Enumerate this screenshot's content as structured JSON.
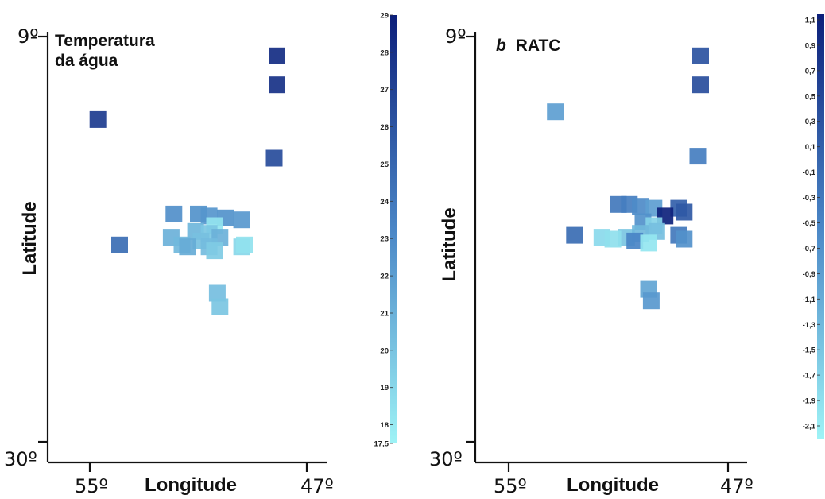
{
  "chart_data": [
    {
      "type": "scatter",
      "title_line1": "Temperatura",
      "title_line2": "da água",
      "title_prefix": "",
      "xlabel": "Longitude",
      "ylabel": "Latitude",
      "x_tick_labels": [
        "55º",
        "47º"
      ],
      "y_tick_labels": [
        "9º",
        "30º"
      ],
      "colorbar": {
        "min": 17.5,
        "max": 29,
        "ticks": [
          29,
          28,
          27,
          26,
          25,
          24,
          23,
          22,
          21,
          20,
          19,
          18,
          17.5
        ],
        "tick_labels": [
          "29",
          "28",
          "27",
          "26",
          "25",
          "24",
          "23",
          "22",
          "21",
          "20",
          "19",
          "18",
          "17,5"
        ]
      },
      "colors": {
        "low": "#9ef3f6",
        "mid": "#4a86c6",
        "high": "#0c1f7a"
      },
      "points": [
        {
          "lon": 48.1,
          "lat": 10.0,
          "v": 28.3
        },
        {
          "lon": 48.1,
          "lat": 11.5,
          "v": 28.0
        },
        {
          "lon": 54.7,
          "lat": 13.3,
          "v": 27.4
        },
        {
          "lon": 48.2,
          "lat": 15.3,
          "v": 26.5
        },
        {
          "lon": 51.9,
          "lat": 18.2,
          "v": 22.8
        },
        {
          "lon": 51.0,
          "lat": 18.2,
          "v": 22.6
        },
        {
          "lon": 50.6,
          "lat": 18.3,
          "v": 22.4
        },
        {
          "lon": 50.0,
          "lat": 18.4,
          "v": 22.6
        },
        {
          "lon": 49.4,
          "lat": 18.5,
          "v": 22.3
        },
        {
          "lon": 50.4,
          "lat": 18.8,
          "v": 18.3
        },
        {
          "lon": 51.1,
          "lat": 19.1,
          "v": 20.7
        },
        {
          "lon": 50.6,
          "lat": 19.2,
          "v": 19.8
        },
        {
          "lon": 52.0,
          "lat": 19.4,
          "v": 21.0
        },
        {
          "lon": 51.6,
          "lat": 19.8,
          "v": 20.6
        },
        {
          "lon": 53.9,
          "lat": 19.8,
          "v": 24.6
        },
        {
          "lon": 50.9,
          "lat": 19.6,
          "v": 20.2
        },
        {
          "lon": 50.2,
          "lat": 19.4,
          "v": 21.0
        },
        {
          "lon": 50.6,
          "lat": 19.9,
          "v": 20.4
        },
        {
          "lon": 51.4,
          "lat": 19.9,
          "v": 21.3
        },
        {
          "lon": 50.4,
          "lat": 20.1,
          "v": 19.6
        },
        {
          "lon": 49.4,
          "lat": 19.9,
          "v": 19.0
        },
        {
          "lon": 49.3,
          "lat": 19.8,
          "v": 18.4
        },
        {
          "lon": 50.3,
          "lat": 22.3,
          "v": 20.3
        },
        {
          "lon": 50.2,
          "lat": 23.0,
          "v": 19.9
        }
      ]
    },
    {
      "type": "scatter",
      "title_prefix": "b",
      "title_line1": "RATC",
      "title_line2": "",
      "xlabel": "Longitude",
      "ylabel": "Latitude",
      "x_tick_labels": [
        "55º",
        "47º"
      ],
      "y_tick_labels": [
        "9º",
        "30º"
      ],
      "colorbar": {
        "min": -2.2,
        "max": 1.15,
        "ticks": [
          1.1,
          0.9,
          0.7,
          0.5,
          0.3,
          0.1,
          -0.1,
          -0.3,
          -0.5,
          -0.7,
          -0.9,
          -1.1,
          -1.3,
          -1.5,
          -1.7,
          -1.9,
          -2.1
        ],
        "tick_labels": [
          "1,1",
          "0,9",
          "0,7",
          "0,5",
          "0,3",
          "0,1",
          "-0,1",
          "-0,3",
          "-0,5",
          "-0,7",
          "-0,9",
          "-1,1",
          "-1,3",
          "-1,5",
          "-1,7",
          "-1,9",
          "-2,1"
        ]
      },
      "colors": {
        "low": "#9ef3f6",
        "mid": "#4a86c6",
        "high": "#0c1f7a"
      },
      "points": [
        {
          "lon": 48.0,
          "lat": 10.0,
          "v": 0.3
        },
        {
          "lon": 48.0,
          "lat": 11.5,
          "v": 0.4
        },
        {
          "lon": 53.3,
          "lat": 12.9,
          "v": -0.9
        },
        {
          "lon": 48.1,
          "lat": 15.2,
          "v": -0.4
        },
        {
          "lon": 51.0,
          "lat": 17.7,
          "v": -0.3
        },
        {
          "lon": 50.6,
          "lat": 17.7,
          "v": -0.4
        },
        {
          "lon": 50.2,
          "lat": 17.8,
          "v": -0.6
        },
        {
          "lon": 49.7,
          "lat": 17.9,
          "v": -0.9
        },
        {
          "lon": 48.8,
          "lat": 17.9,
          "v": 0.1
        },
        {
          "lon": 48.6,
          "lat": 18.1,
          "v": 0.2
        },
        {
          "lon": 49.3,
          "lat": 18.3,
          "v": 1.1
        },
        {
          "lon": 50.1,
          "lat": 18.6,
          "v": -0.7
        },
        {
          "lon": 49.7,
          "lat": 18.8,
          "v": -1.7
        },
        {
          "lon": 52.6,
          "lat": 19.3,
          "v": -0.1
        },
        {
          "lon": 51.6,
          "lat": 19.4,
          "v": -1.8
        },
        {
          "lon": 50.7,
          "lat": 19.4,
          "v": -1.5
        },
        {
          "lon": 51.2,
          "lat": 19.5,
          "v": -1.9
        },
        {
          "lon": 50.2,
          "lat": 19.2,
          "v": -1.3
        },
        {
          "lon": 49.6,
          "lat": 19.1,
          "v": -1.4
        },
        {
          "lon": 48.8,
          "lat": 19.3,
          "v": -0.3
        },
        {
          "lon": 48.6,
          "lat": 19.5,
          "v": -0.7
        },
        {
          "lon": 50.4,
          "lat": 19.6,
          "v": -0.5
        },
        {
          "lon": 49.9,
          "lat": 19.7,
          "v": -2.0
        },
        {
          "lon": 49.9,
          "lat": 22.1,
          "v": -1.0
        },
        {
          "lon": 49.8,
          "lat": 22.7,
          "v": -0.8
        }
      ]
    }
  ]
}
